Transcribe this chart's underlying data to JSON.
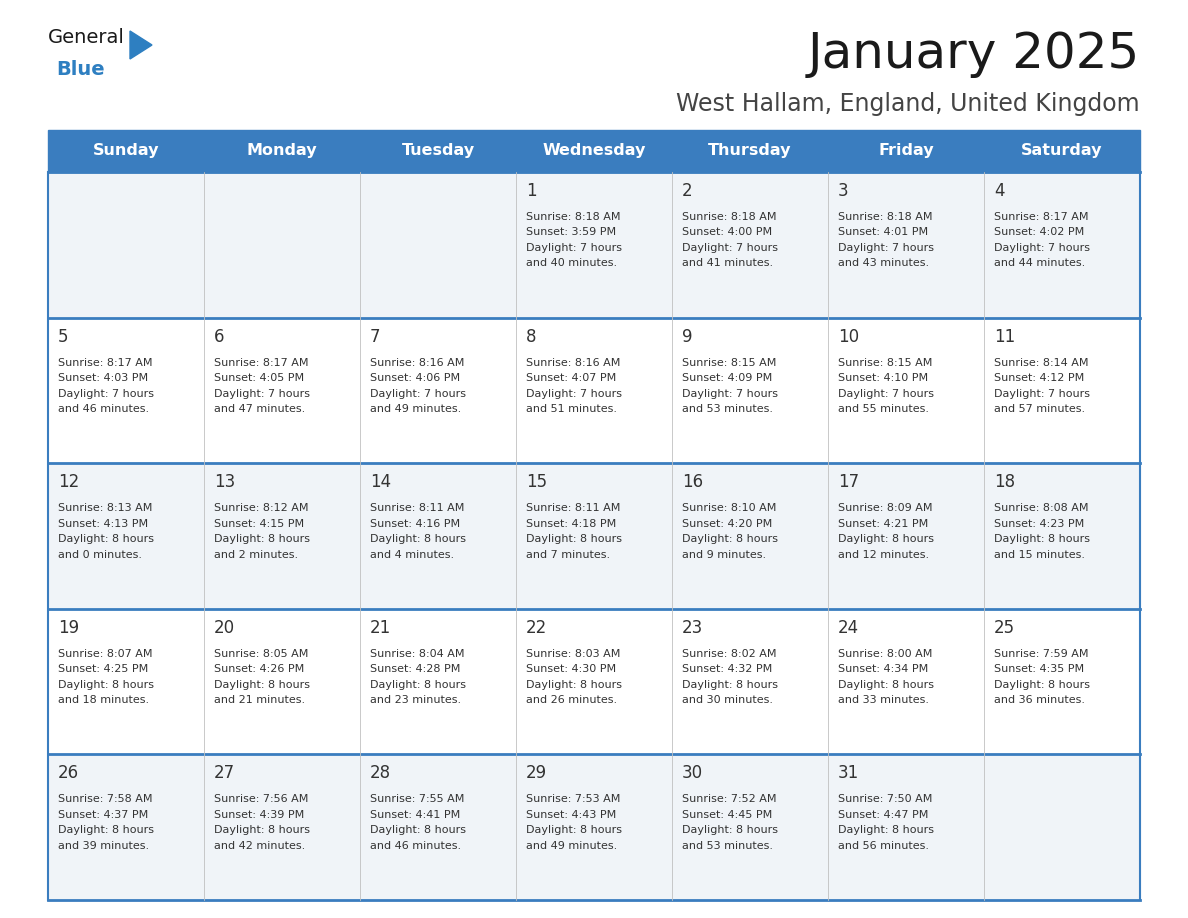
{
  "title": "January 2025",
  "subtitle": "West Hallam, England, United Kingdom",
  "days_of_week": [
    "Sunday",
    "Monday",
    "Tuesday",
    "Wednesday",
    "Thursday",
    "Friday",
    "Saturday"
  ],
  "header_bg": "#3a7dbf",
  "header_text": "#ffffff",
  "row_bg_odd": "#f0f4f8",
  "row_bg_even": "#ffffff",
  "border_color": "#3a7dbf",
  "cell_text_color": "#333333",
  "day_num_color": "#333333",
  "calendar_data": [
    [
      {
        "day": null
      },
      {
        "day": null
      },
      {
        "day": null
      },
      {
        "day": 1,
        "sunrise": "8:18 AM",
        "sunset": "3:59 PM",
        "daylight": "7 hours",
        "daylight2": "and 40 minutes."
      },
      {
        "day": 2,
        "sunrise": "8:18 AM",
        "sunset": "4:00 PM",
        "daylight": "7 hours",
        "daylight2": "and 41 minutes."
      },
      {
        "day": 3,
        "sunrise": "8:18 AM",
        "sunset": "4:01 PM",
        "daylight": "7 hours",
        "daylight2": "and 43 minutes."
      },
      {
        "day": 4,
        "sunrise": "8:17 AM",
        "sunset": "4:02 PM",
        "daylight": "7 hours",
        "daylight2": "and 44 minutes."
      }
    ],
    [
      {
        "day": 5,
        "sunrise": "8:17 AM",
        "sunset": "4:03 PM",
        "daylight": "7 hours",
        "daylight2": "and 46 minutes."
      },
      {
        "day": 6,
        "sunrise": "8:17 AM",
        "sunset": "4:05 PM",
        "daylight": "7 hours",
        "daylight2": "and 47 minutes."
      },
      {
        "day": 7,
        "sunrise": "8:16 AM",
        "sunset": "4:06 PM",
        "daylight": "7 hours",
        "daylight2": "and 49 minutes."
      },
      {
        "day": 8,
        "sunrise": "8:16 AM",
        "sunset": "4:07 PM",
        "daylight": "7 hours",
        "daylight2": "and 51 minutes."
      },
      {
        "day": 9,
        "sunrise": "8:15 AM",
        "sunset": "4:09 PM",
        "daylight": "7 hours",
        "daylight2": "and 53 minutes."
      },
      {
        "day": 10,
        "sunrise": "8:15 AM",
        "sunset": "4:10 PM",
        "daylight": "7 hours",
        "daylight2": "and 55 minutes."
      },
      {
        "day": 11,
        "sunrise": "8:14 AM",
        "sunset": "4:12 PM",
        "daylight": "7 hours",
        "daylight2": "and 57 minutes."
      }
    ],
    [
      {
        "day": 12,
        "sunrise": "8:13 AM",
        "sunset": "4:13 PM",
        "daylight": "8 hours",
        "daylight2": "and 0 minutes."
      },
      {
        "day": 13,
        "sunrise": "8:12 AM",
        "sunset": "4:15 PM",
        "daylight": "8 hours",
        "daylight2": "and 2 minutes."
      },
      {
        "day": 14,
        "sunrise": "8:11 AM",
        "sunset": "4:16 PM",
        "daylight": "8 hours",
        "daylight2": "and 4 minutes."
      },
      {
        "day": 15,
        "sunrise": "8:11 AM",
        "sunset": "4:18 PM",
        "daylight": "8 hours",
        "daylight2": "and 7 minutes."
      },
      {
        "day": 16,
        "sunrise": "8:10 AM",
        "sunset": "4:20 PM",
        "daylight": "8 hours",
        "daylight2": "and 9 minutes."
      },
      {
        "day": 17,
        "sunrise": "8:09 AM",
        "sunset": "4:21 PM",
        "daylight": "8 hours",
        "daylight2": "and 12 minutes."
      },
      {
        "day": 18,
        "sunrise": "8:08 AM",
        "sunset": "4:23 PM",
        "daylight": "8 hours",
        "daylight2": "and 15 minutes."
      }
    ],
    [
      {
        "day": 19,
        "sunrise": "8:07 AM",
        "sunset": "4:25 PM",
        "daylight": "8 hours",
        "daylight2": "and 18 minutes."
      },
      {
        "day": 20,
        "sunrise": "8:05 AM",
        "sunset": "4:26 PM",
        "daylight": "8 hours",
        "daylight2": "and 21 minutes."
      },
      {
        "day": 21,
        "sunrise": "8:04 AM",
        "sunset": "4:28 PM",
        "daylight": "8 hours",
        "daylight2": "and 23 minutes."
      },
      {
        "day": 22,
        "sunrise": "8:03 AM",
        "sunset": "4:30 PM",
        "daylight": "8 hours",
        "daylight2": "and 26 minutes."
      },
      {
        "day": 23,
        "sunrise": "8:02 AM",
        "sunset": "4:32 PM",
        "daylight": "8 hours",
        "daylight2": "and 30 minutes."
      },
      {
        "day": 24,
        "sunrise": "8:00 AM",
        "sunset": "4:34 PM",
        "daylight": "8 hours",
        "daylight2": "and 33 minutes."
      },
      {
        "day": 25,
        "sunrise": "7:59 AM",
        "sunset": "4:35 PM",
        "daylight": "8 hours",
        "daylight2": "and 36 minutes."
      }
    ],
    [
      {
        "day": 26,
        "sunrise": "7:58 AM",
        "sunset": "4:37 PM",
        "daylight": "8 hours",
        "daylight2": "and 39 minutes."
      },
      {
        "day": 27,
        "sunrise": "7:56 AM",
        "sunset": "4:39 PM",
        "daylight": "8 hours",
        "daylight2": "and 42 minutes."
      },
      {
        "day": 28,
        "sunrise": "7:55 AM",
        "sunset": "4:41 PM",
        "daylight": "8 hours",
        "daylight2": "and 46 minutes."
      },
      {
        "day": 29,
        "sunrise": "7:53 AM",
        "sunset": "4:43 PM",
        "daylight": "8 hours",
        "daylight2": "and 49 minutes."
      },
      {
        "day": 30,
        "sunrise": "7:52 AM",
        "sunset": "4:45 PM",
        "daylight": "8 hours",
        "daylight2": "and 53 minutes."
      },
      {
        "day": 31,
        "sunrise": "7:50 AM",
        "sunset": "4:47 PM",
        "daylight": "8 hours",
        "daylight2": "and 56 minutes."
      },
      {
        "day": null
      }
    ]
  ],
  "logo_general_color": "#1a1a1a",
  "logo_blue_color": "#2e7fc1",
  "logo_triangle_color": "#2e7fc1",
  "title_fontsize": 36,
  "subtitle_fontsize": 17,
  "header_fontsize": 11.5,
  "day_num_fontsize": 12,
  "cell_info_fontsize": 8
}
